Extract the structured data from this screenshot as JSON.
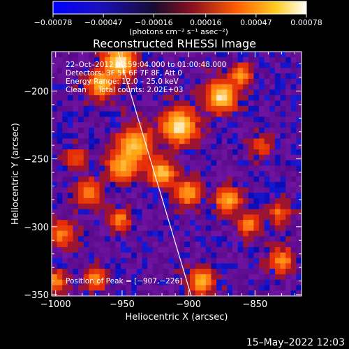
{
  "chart_data": {
    "type": "heatmap",
    "title": "Reconstructed RHESSI Image",
    "xlabel": "Heliocentric X (arcsec)",
    "ylabel": "Heliocentric Y (arcsec)",
    "xlim": [
      -1003,
      -815
    ],
    "ylim": [
      -351,
      -171
    ],
    "xticks": [
      -1000,
      -950,
      -900,
      -850
    ],
    "xtick_labels": [
      "−1000",
      "−950",
      "−900",
      "−850"
    ],
    "yticks": [
      -200,
      -250,
      -300,
      -350
    ],
    "ytick_labels": [
      "−200",
      "−250",
      "−300",
      "−350"
    ],
    "colorbar": {
      "range": [
        -0.00078,
        0.00078
      ],
      "ticks": [
        -0.00078,
        -0.00047,
        -0.00016,
        0.00016,
        0.00047,
        0.00078
      ],
      "tick_labels": [
        "−0.00078",
        "−0.00047",
        "−0.00016",
        "0.00016",
        "0.00047",
        "0.00078"
      ],
      "unit_label": "(photons cm⁻² s⁻¹ asec⁻²)",
      "colors": [
        "#0000ff",
        "#0c0c34",
        "#ff6a00",
        "#ffdd20",
        "#ffffff"
      ]
    },
    "annotations": [
      "22–Oct–2012 00:59:04.000 to 01:00:48.000",
      "Detectors: 3F 5F 6F 7F 8F, Att 0",
      "Energy Range: 12.0 – 25.0 keV",
      "Clean     Total counts: 2.02E+03"
    ],
    "peak_label": "Position of Peak = [−907,−226]",
    "peak": [
      -907,
      -226
    ],
    "sources": [
      {
        "x": -952,
        "y": -179,
        "amp": 1.0,
        "s": 7
      },
      {
        "x": -966,
        "y": -195,
        "amp": 0.8,
        "s": 6
      },
      {
        "x": -907,
        "y": -226,
        "amp": 1.0,
        "s": 8
      },
      {
        "x": -875,
        "y": -204,
        "amp": 0.95,
        "s": 7
      },
      {
        "x": -860,
        "y": -188,
        "amp": 0.6,
        "s": 5
      },
      {
        "x": -940,
        "y": -240,
        "amp": 0.8,
        "s": 8
      },
      {
        "x": -950,
        "y": -256,
        "amp": 0.7,
        "s": 7
      },
      {
        "x": -920,
        "y": -260,
        "amp": 0.85,
        "s": 6
      },
      {
        "x": -900,
        "y": -275,
        "amp": 0.65,
        "s": 6
      },
      {
        "x": -975,
        "y": -275,
        "amp": 0.55,
        "s": 6
      },
      {
        "x": -995,
        "y": -305,
        "amp": 0.5,
        "s": 6
      },
      {
        "x": -952,
        "y": -295,
        "amp": 0.55,
        "s": 5
      },
      {
        "x": -870,
        "y": -280,
        "amp": 0.7,
        "s": 6
      },
      {
        "x": -855,
        "y": -298,
        "amp": 0.55,
        "s": 5
      },
      {
        "x": -890,
        "y": -340,
        "amp": 0.75,
        "s": 6
      },
      {
        "x": -830,
        "y": -325,
        "amp": 0.55,
        "s": 6
      },
      {
        "x": -970,
        "y": -338,
        "amp": 0.6,
        "s": 5
      },
      {
        "x": -1000,
        "y": -340,
        "amp": 0.55,
        "s": 5
      },
      {
        "x": -845,
        "y": -240,
        "amp": 0.35,
        "s": 5
      },
      {
        "x": -832,
        "y": -290,
        "amp": 0.45,
        "s": 5
      },
      {
        "x": -985,
        "y": -250,
        "amp": 0.4,
        "s": 5
      }
    ],
    "limb_line": [
      [
        -953,
        -171
      ],
      [
        -898,
        -351
      ]
    ]
  },
  "footer": {
    "date": "15–May–2022 12:03"
  }
}
